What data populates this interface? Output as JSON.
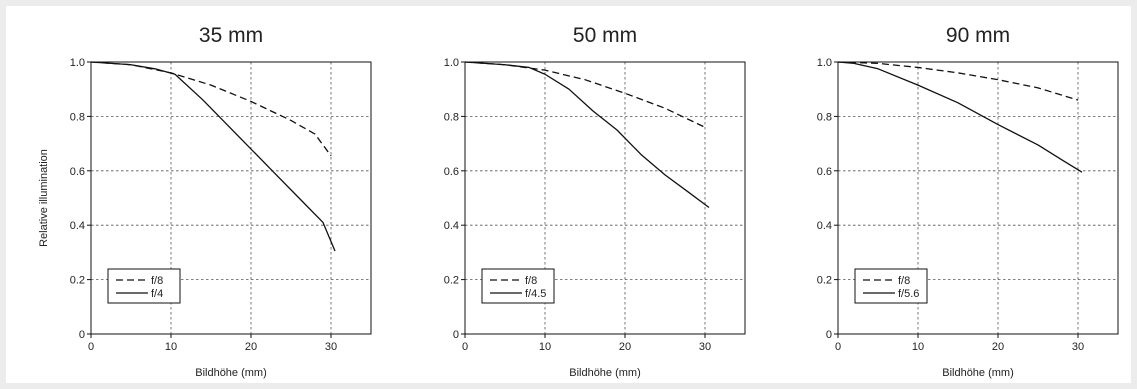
{
  "chart_data": [
    {
      "type": "line",
      "title": "35 mm",
      "xlabel": "Bildhöhe (mm)",
      "ylabel": "Relative illumination",
      "xlim": [
        0,
        35
      ],
      "ylim": [
        0,
        1.0
      ],
      "xticks": [
        0,
        10,
        20,
        30
      ],
      "yticks": [
        0,
        0.2,
        0.4,
        0.6,
        0.8,
        1.0
      ],
      "ytick_labels": [
        "0",
        "0.2",
        "0.4",
        "0.6",
        "0.8",
        "1.0"
      ],
      "grid": true,
      "legend_position": "bottom-left",
      "series": [
        {
          "name": "f/8",
          "style": "dashed",
          "x": [
            0,
            5,
            10,
            15,
            20,
            25,
            28,
            30
          ],
          "y": [
            1.0,
            0.99,
            0.96,
            0.915,
            0.855,
            0.785,
            0.735,
            0.655
          ]
        },
        {
          "name": "f/4",
          "style": "solid",
          "x": [
            0,
            5,
            8,
            10.5,
            14,
            17,
            20,
            23,
            26,
            29,
            30.5
          ],
          "y": [
            1.0,
            0.99,
            0.975,
            0.955,
            0.86,
            0.77,
            0.68,
            0.59,
            0.5,
            0.41,
            0.305
          ]
        }
      ]
    },
    {
      "type": "line",
      "title": "50 mm",
      "xlabel": "Bildhöhe (mm)",
      "ylabel": "",
      "xlim": [
        0,
        35
      ],
      "ylim": [
        0,
        1.0
      ],
      "xticks": [
        0,
        10,
        20,
        30
      ],
      "yticks": [
        0,
        0.2,
        0.4,
        0.6,
        0.8,
        1.0
      ],
      "ytick_labels": [
        "0",
        "0.2",
        "0.4",
        "0.6",
        "0.8",
        "1.0"
      ],
      "grid": true,
      "legend_position": "bottom-left",
      "series": [
        {
          "name": "f/8",
          "style": "dashed",
          "x": [
            0,
            5,
            10,
            15,
            20,
            25,
            30
          ],
          "y": [
            1.0,
            0.99,
            0.97,
            0.935,
            0.885,
            0.83,
            0.76
          ]
        },
        {
          "name": "f/4.5",
          "style": "solid",
          "x": [
            0,
            5,
            8,
            10,
            13,
            16,
            19,
            22,
            25,
            28,
            30.5
          ],
          "y": [
            1.0,
            0.99,
            0.98,
            0.955,
            0.9,
            0.82,
            0.75,
            0.66,
            0.585,
            0.52,
            0.465
          ]
        }
      ]
    },
    {
      "type": "line",
      "title": "90 mm",
      "xlabel": "Bildhöhe (mm)",
      "ylabel": "",
      "xlim": [
        0,
        35
      ],
      "ylim": [
        0,
        1.0
      ],
      "xticks": [
        0,
        10,
        20,
        30
      ],
      "yticks": [
        0,
        0.2,
        0.4,
        0.6,
        0.8,
        1.0
      ],
      "ytick_labels": [
        "0",
        "0.2",
        "0.4",
        "0.6",
        "0.8",
        "1.0"
      ],
      "grid": true,
      "legend_position": "bottom-left",
      "series": [
        {
          "name": "f/8",
          "style": "dashed",
          "x": [
            0,
            5,
            10,
            15,
            20,
            25,
            30
          ],
          "y": [
            1.0,
            0.995,
            0.98,
            0.96,
            0.935,
            0.905,
            0.86
          ]
        },
        {
          "name": "f/5.6",
          "style": "solid",
          "x": [
            0,
            2,
            5,
            10,
            15,
            20,
            25,
            28,
            30.5
          ],
          "y": [
            1.0,
            0.995,
            0.975,
            0.915,
            0.85,
            0.77,
            0.695,
            0.64,
            0.595
          ]
        }
      ]
    }
  ]
}
